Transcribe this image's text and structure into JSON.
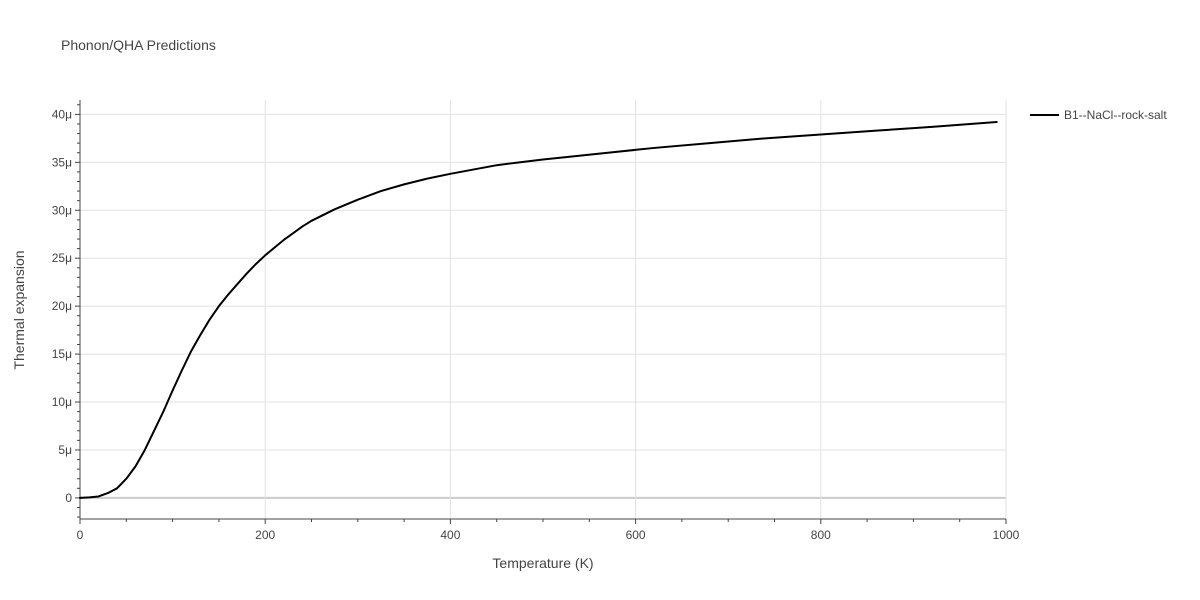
{
  "chart_data": {
    "type": "line",
    "title": "Phonon/QHA Predictions",
    "xlabel": "Temperature (K)",
    "ylabel": "Thermal expansion",
    "xlim": [
      0,
      1000
    ],
    "ylim": [
      -2.2e-06,
      4.15e-05
    ],
    "x_ticks": [
      0,
      200,
      400,
      600,
      800,
      1000
    ],
    "x_tick_labels": [
      "0",
      "200",
      "400",
      "600",
      "800",
      "1000"
    ],
    "y_ticks": [
      0,
      5e-06,
      1e-05,
      1.5e-05,
      2e-05,
      2.5e-05,
      3e-05,
      3.5e-05,
      4e-05
    ],
    "y_tick_labels": [
      "0",
      "5μ",
      "10μ",
      "15μ",
      "20μ",
      "25μ",
      "30μ",
      "35μ",
      "40μ"
    ],
    "grid": true,
    "legend_position": "top-right outside",
    "series": [
      {
        "name": "B1--NaCl--rock-salt",
        "color": "#000000",
        "x": [
          0,
          10,
          20,
          30,
          40,
          50,
          60,
          70,
          80,
          90,
          100,
          110,
          120,
          130,
          140,
          150,
          160,
          170,
          180,
          190,
          200,
          210,
          220,
          230,
          240,
          250,
          275,
          300,
          325,
          350,
          375,
          400,
          450,
          500,
          530,
          570,
          620,
          680,
          740,
          800,
          860,
          920,
          990
        ],
        "y": [
          0,
          5e-08,
          1.5e-07,
          5e-07,
          1e-06,
          2e-06,
          3.3e-06,
          5e-06,
          7e-06,
          9e-06,
          1.12e-05,
          1.33e-05,
          1.53e-05,
          1.7e-05,
          1.86e-05,
          2e-05,
          2.12e-05,
          2.23e-05,
          2.34e-05,
          2.44e-05,
          2.53e-05,
          2.61e-05,
          2.69e-05,
          2.76e-05,
          2.83e-05,
          2.89e-05,
          3.01e-05,
          3.11e-05,
          3.2e-05,
          3.27e-05,
          3.33e-05,
          3.38e-05,
          3.47e-05,
          3.53e-05,
          3.56e-05,
          3.6e-05,
          3.65e-05,
          3.7e-05,
          3.75e-05,
          3.79e-05,
          3.83e-05,
          3.87e-05,
          3.92e-05
        ]
      }
    ]
  }
}
